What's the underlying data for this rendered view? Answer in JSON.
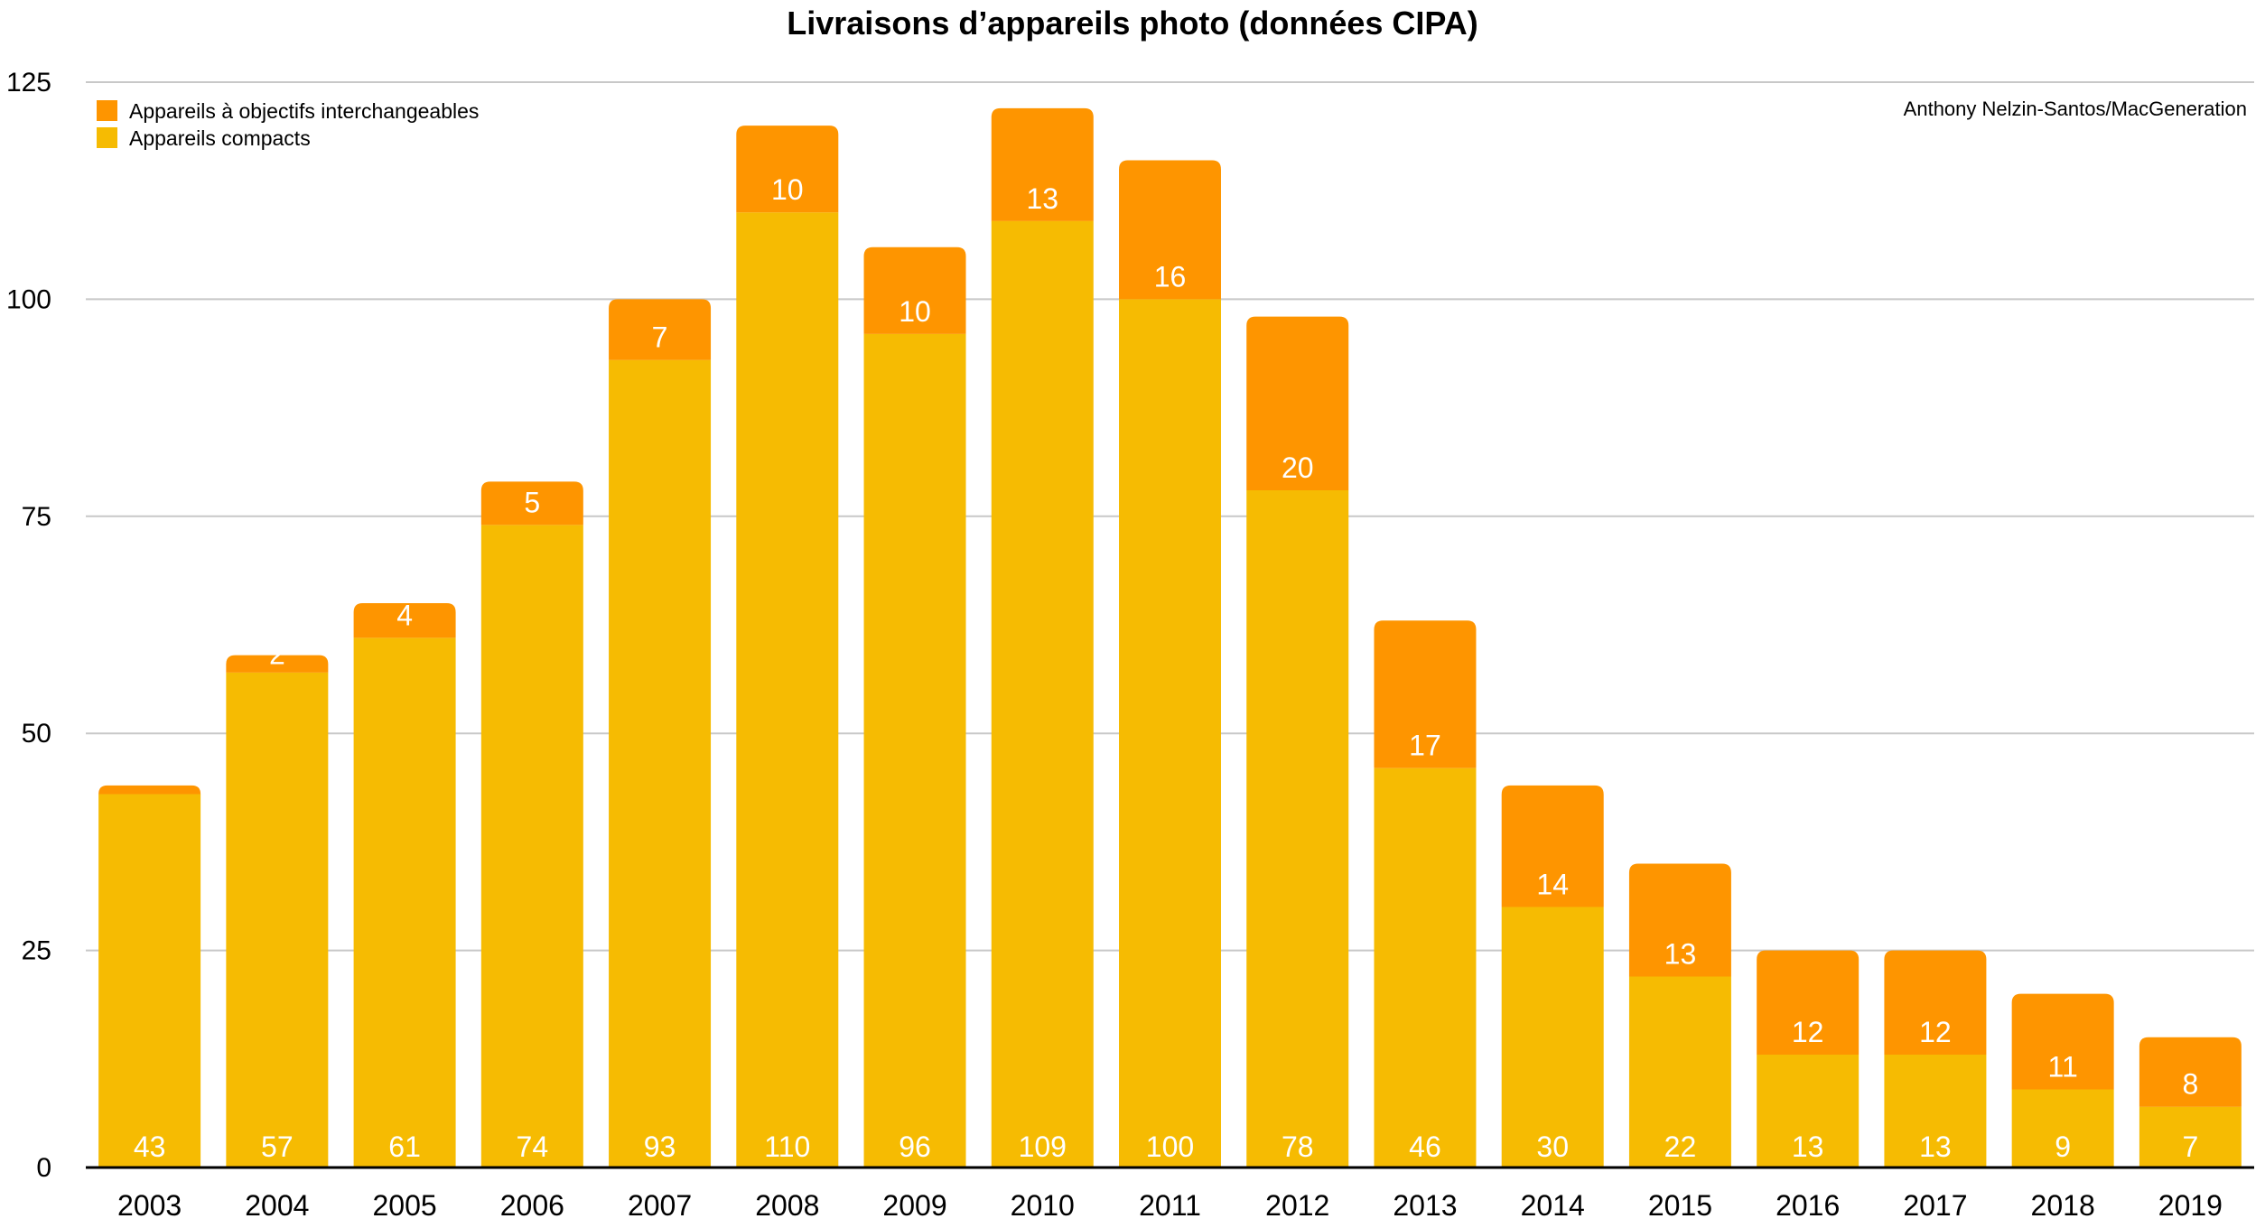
{
  "chart_data": {
    "type": "bar",
    "stacked": true,
    "title": "Livraisons d’appareils photo (données CIPA)",
    "credit": "Anthony Nelzin-Santos/MacGeneration",
    "xlabel": "",
    "ylabel": "",
    "ylim": [
      0,
      125
    ],
    "yticks": [
      0,
      25,
      50,
      75,
      100,
      125
    ],
    "grid": true,
    "legend_position": "top-left",
    "categories": [
      "2003",
      "2004",
      "2005",
      "2006",
      "2007",
      "2008",
      "2009",
      "2010",
      "2011",
      "2012",
      "2013",
      "2014",
      "2015",
      "2016",
      "2017",
      "2018",
      "2019"
    ],
    "series": [
      {
        "name": "Appareils compacts",
        "color": "#f6bb02",
        "values": [
          43,
          57,
          61,
          74,
          93,
          110,
          96,
          109,
          100,
          78,
          46,
          30,
          22,
          13,
          13,
          9,
          7
        ],
        "labels": [
          "43",
          "57",
          "61",
          "74",
          "93",
          "110",
          "96",
          "109",
          "100",
          "78",
          "46",
          "30",
          "22",
          "13",
          "13",
          "9",
          "7"
        ]
      },
      {
        "name": "Appareils à objectifs interchangeables",
        "color": "#fe9500",
        "values": [
          1,
          2,
          4,
          5,
          7,
          10,
          10,
          13,
          16,
          20,
          17,
          14,
          13,
          12,
          12,
          11,
          8
        ],
        "labels": [
          "",
          "2",
          "4",
          "5",
          "7",
          "10",
          "10",
          "13",
          "16",
          "20",
          "17",
          "14",
          "13",
          "12",
          "12",
          "11",
          "8"
        ]
      }
    ]
  }
}
